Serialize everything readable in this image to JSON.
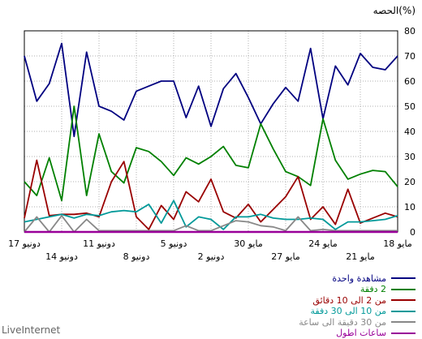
{
  "chart_data": {
    "type": "line",
    "title": "",
    "xlabel": "",
    "ylabel": "الحصه(%)",
    "ylim": [
      0,
      80
    ],
    "y_ticks": [
      0,
      10,
      20,
      30,
      40,
      50,
      60,
      70,
      80
    ],
    "grid": true,
    "x_axis_direction": "right-to-left",
    "legend_position": "bottom",
    "x_tick_labels_row1": [
      "18 مايو",
      "24 مايو",
      "30 مايو",
      "5 دونيو",
      "11 دونيو",
      "17 دونيو"
    ],
    "x_tick_labels_row2": [
      "21 مايو",
      "27 مايو",
      "2 دونيو",
      "8 دونيو",
      "14 دونيو"
    ],
    "series": [
      {
        "name": "مشاهدة واحدة",
        "color": "#000080",
        "values": [
          70,
          64.5,
          65.5,
          71,
          58.5,
          66,
          45,
          73,
          52,
          57.5,
          51,
          43,
          53.5,
          63,
          57,
          42,
          58,
          45.5,
          60,
          60,
          58,
          56,
          44.5,
          48,
          50,
          71.5,
          38,
          75,
          59,
          52,
          70
        ]
      },
      {
        "name": "2 دفقة",
        "color": "#008000",
        "values": [
          18,
          24,
          24.5,
          23,
          21,
          28.5,
          45,
          18.5,
          22,
          24,
          33,
          43,
          25.5,
          26.5,
          34,
          30,
          27,
          29.5,
          22.5,
          28,
          32,
          33.5,
          19.5,
          24,
          39,
          14.5,
          50,
          12.5,
          29.5,
          14.5,
          20
        ]
      },
      {
        "name": "من 2 الى 10 دقائق",
        "color": "#990000",
        "values": [
          6,
          7.5,
          5.5,
          3.5,
          17,
          3,
          10,
          5,
          22,
          14,
          9,
          4,
          11,
          5.5,
          8,
          21,
          12,
          16,
          5,
          10.5,
          1,
          6,
          28,
          20,
          6,
          7.5,
          7,
          7,
          6.5,
          28.5,
          5.5
        ]
      },
      {
        "name": "من 10 الى 30 دفقة",
        "color": "#009999",
        "values": [
          6.5,
          5,
          4.5,
          4,
          4,
          1,
          5,
          5.5,
          5,
          5,
          5.5,
          7,
          6,
          6,
          1,
          5,
          6,
          2,
          12.5,
          3.5,
          11,
          8,
          8.5,
          8,
          6.5,
          7,
          5.5,
          7,
          6,
          5,
          4
        ]
      },
      {
        "name": "من 30 دقيقة الى ساعة",
        "color": "#888888",
        "values": [
          0.5,
          0.5,
          0.5,
          0.5,
          0.5,
          0.5,
          1,
          0.5,
          6,
          0.5,
          2,
          2.5,
          4,
          4.5,
          2.5,
          0.5,
          0.5,
          2.5,
          0.5,
          0.5,
          0.5,
          0.5,
          0.5,
          0.5,
          0.5,
          5,
          0,
          6.5,
          0,
          6,
          0
        ]
      },
      {
        "name": "ساعات اطول",
        "color": "#990099",
        "values": [
          0,
          0,
          0,
          0,
          0,
          0,
          0,
          0,
          0,
          0,
          0,
          0,
          0,
          0,
          0,
          0,
          0,
          0,
          0,
          0,
          0,
          0,
          0,
          0,
          0,
          0,
          0,
          0,
          0,
          0,
          0
        ]
      }
    ]
  },
  "footer": {
    "brand": "LiveInternet"
  }
}
